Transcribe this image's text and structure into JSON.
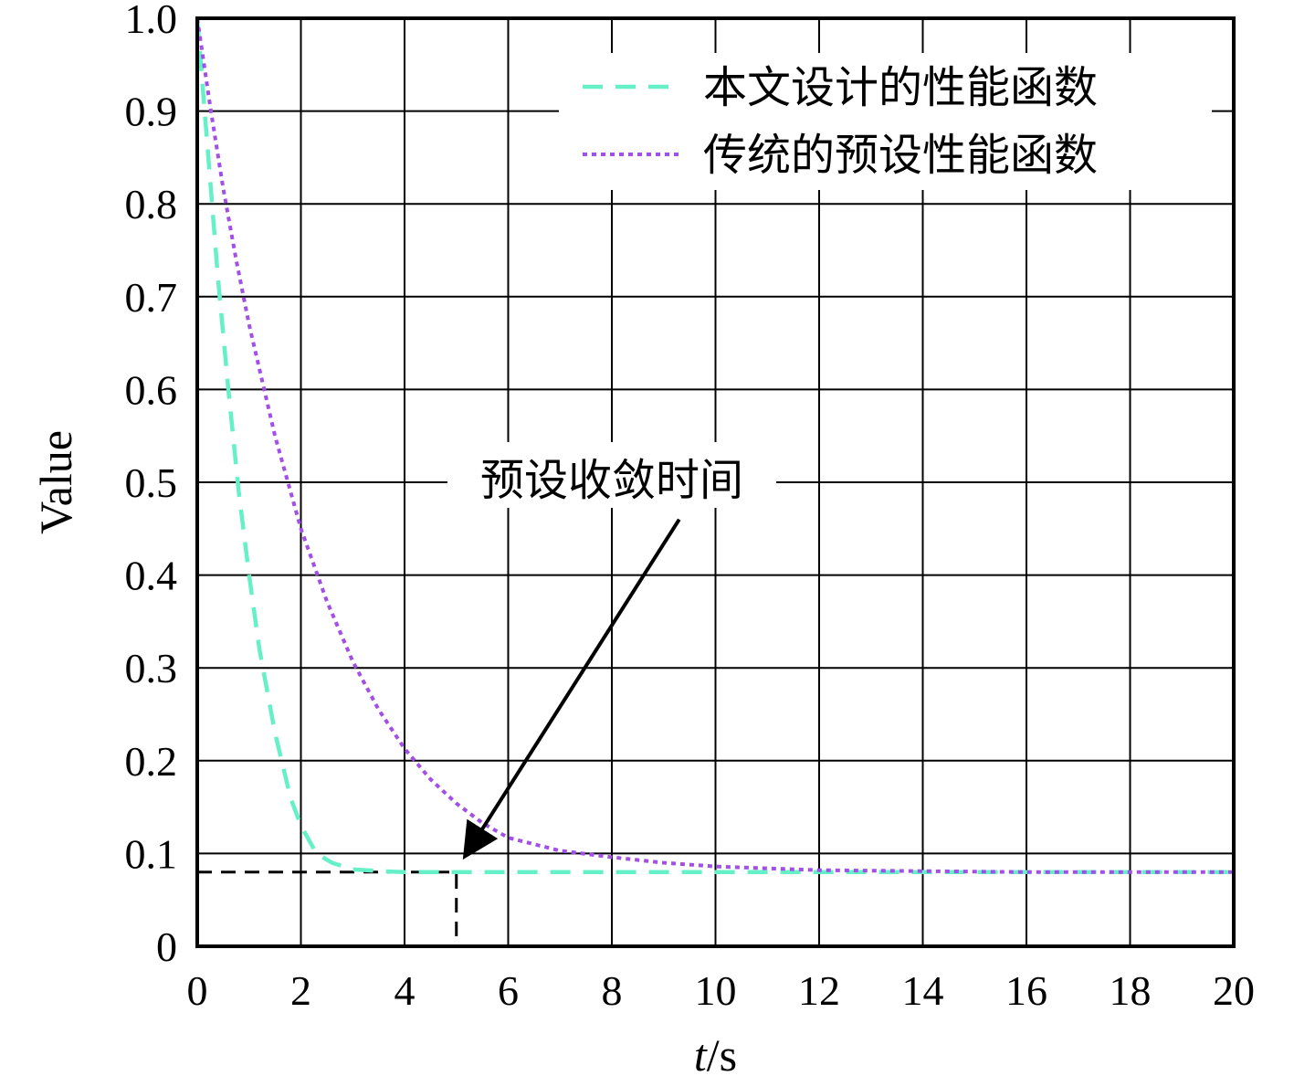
{
  "chart_data": {
    "type": "line",
    "xlabel_italic": "t",
    "xlabel_unit": "/s",
    "ylabel": "Value",
    "xlim": [
      0,
      20
    ],
    "ylim": [
      0,
      1.0
    ],
    "x_ticks": [
      "0",
      "2",
      "4",
      "6",
      "8",
      "10",
      "12",
      "14",
      "16",
      "18",
      "20"
    ],
    "y_ticks": [
      "0",
      "0.1",
      "0.2",
      "0.3",
      "0.4",
      "0.5",
      "0.6",
      "0.7",
      "0.8",
      "0.9",
      "1.0"
    ],
    "grid": true,
    "legend_position": "top-right",
    "series": [
      {
        "name": "本文设计的性能函数",
        "color": "#66f0c8",
        "style": "dashed",
        "x": [
          0,
          0.2,
          0.4,
          0.6,
          0.8,
          1.0,
          1.2,
          1.5,
          1.8,
          2.0,
          2.3,
          2.6,
          3.0,
          3.5,
          4.0,
          4.5,
          5.0,
          6,
          8,
          10,
          12,
          14,
          16,
          18,
          20
        ],
        "values": [
          1.0,
          0.86,
          0.72,
          0.6,
          0.49,
          0.4,
          0.32,
          0.23,
          0.16,
          0.13,
          0.1,
          0.09,
          0.083,
          0.081,
          0.08,
          0.08,
          0.08,
          0.08,
          0.08,
          0.08,
          0.08,
          0.08,
          0.08,
          0.08,
          0.08
        ]
      },
      {
        "name": "传统的预设性能函数",
        "color": "#a24ee8",
        "style": "dotted",
        "x": [
          0,
          0.25,
          0.5,
          0.75,
          1.0,
          1.5,
          2.0,
          2.5,
          3.0,
          3.5,
          4.0,
          4.5,
          5.0,
          5.5,
          6.0,
          7.0,
          8.0,
          9.0,
          10.0,
          11.0,
          12.0,
          14.0,
          16.0,
          18.0,
          20.0
        ],
        "values": [
          1.0,
          0.905,
          0.817,
          0.74,
          0.67,
          0.55,
          0.45,
          0.372,
          0.307,
          0.255,
          0.213,
          0.18,
          0.154,
          0.133,
          0.117,
          0.103,
          0.096,
          0.09,
          0.086,
          0.084,
          0.082,
          0.081,
          0.08,
          0.08,
          0.08
        ]
      }
    ],
    "reference_lines": {
      "t_converge": 5,
      "level": 0.08
    },
    "annotation": {
      "text": "预设收敛时间",
      "text_at": [
        8,
        0.5
      ],
      "arrow_from": [
        9.3,
        0.46
      ],
      "arrow_to": [
        5.2,
        0.1
      ]
    }
  }
}
